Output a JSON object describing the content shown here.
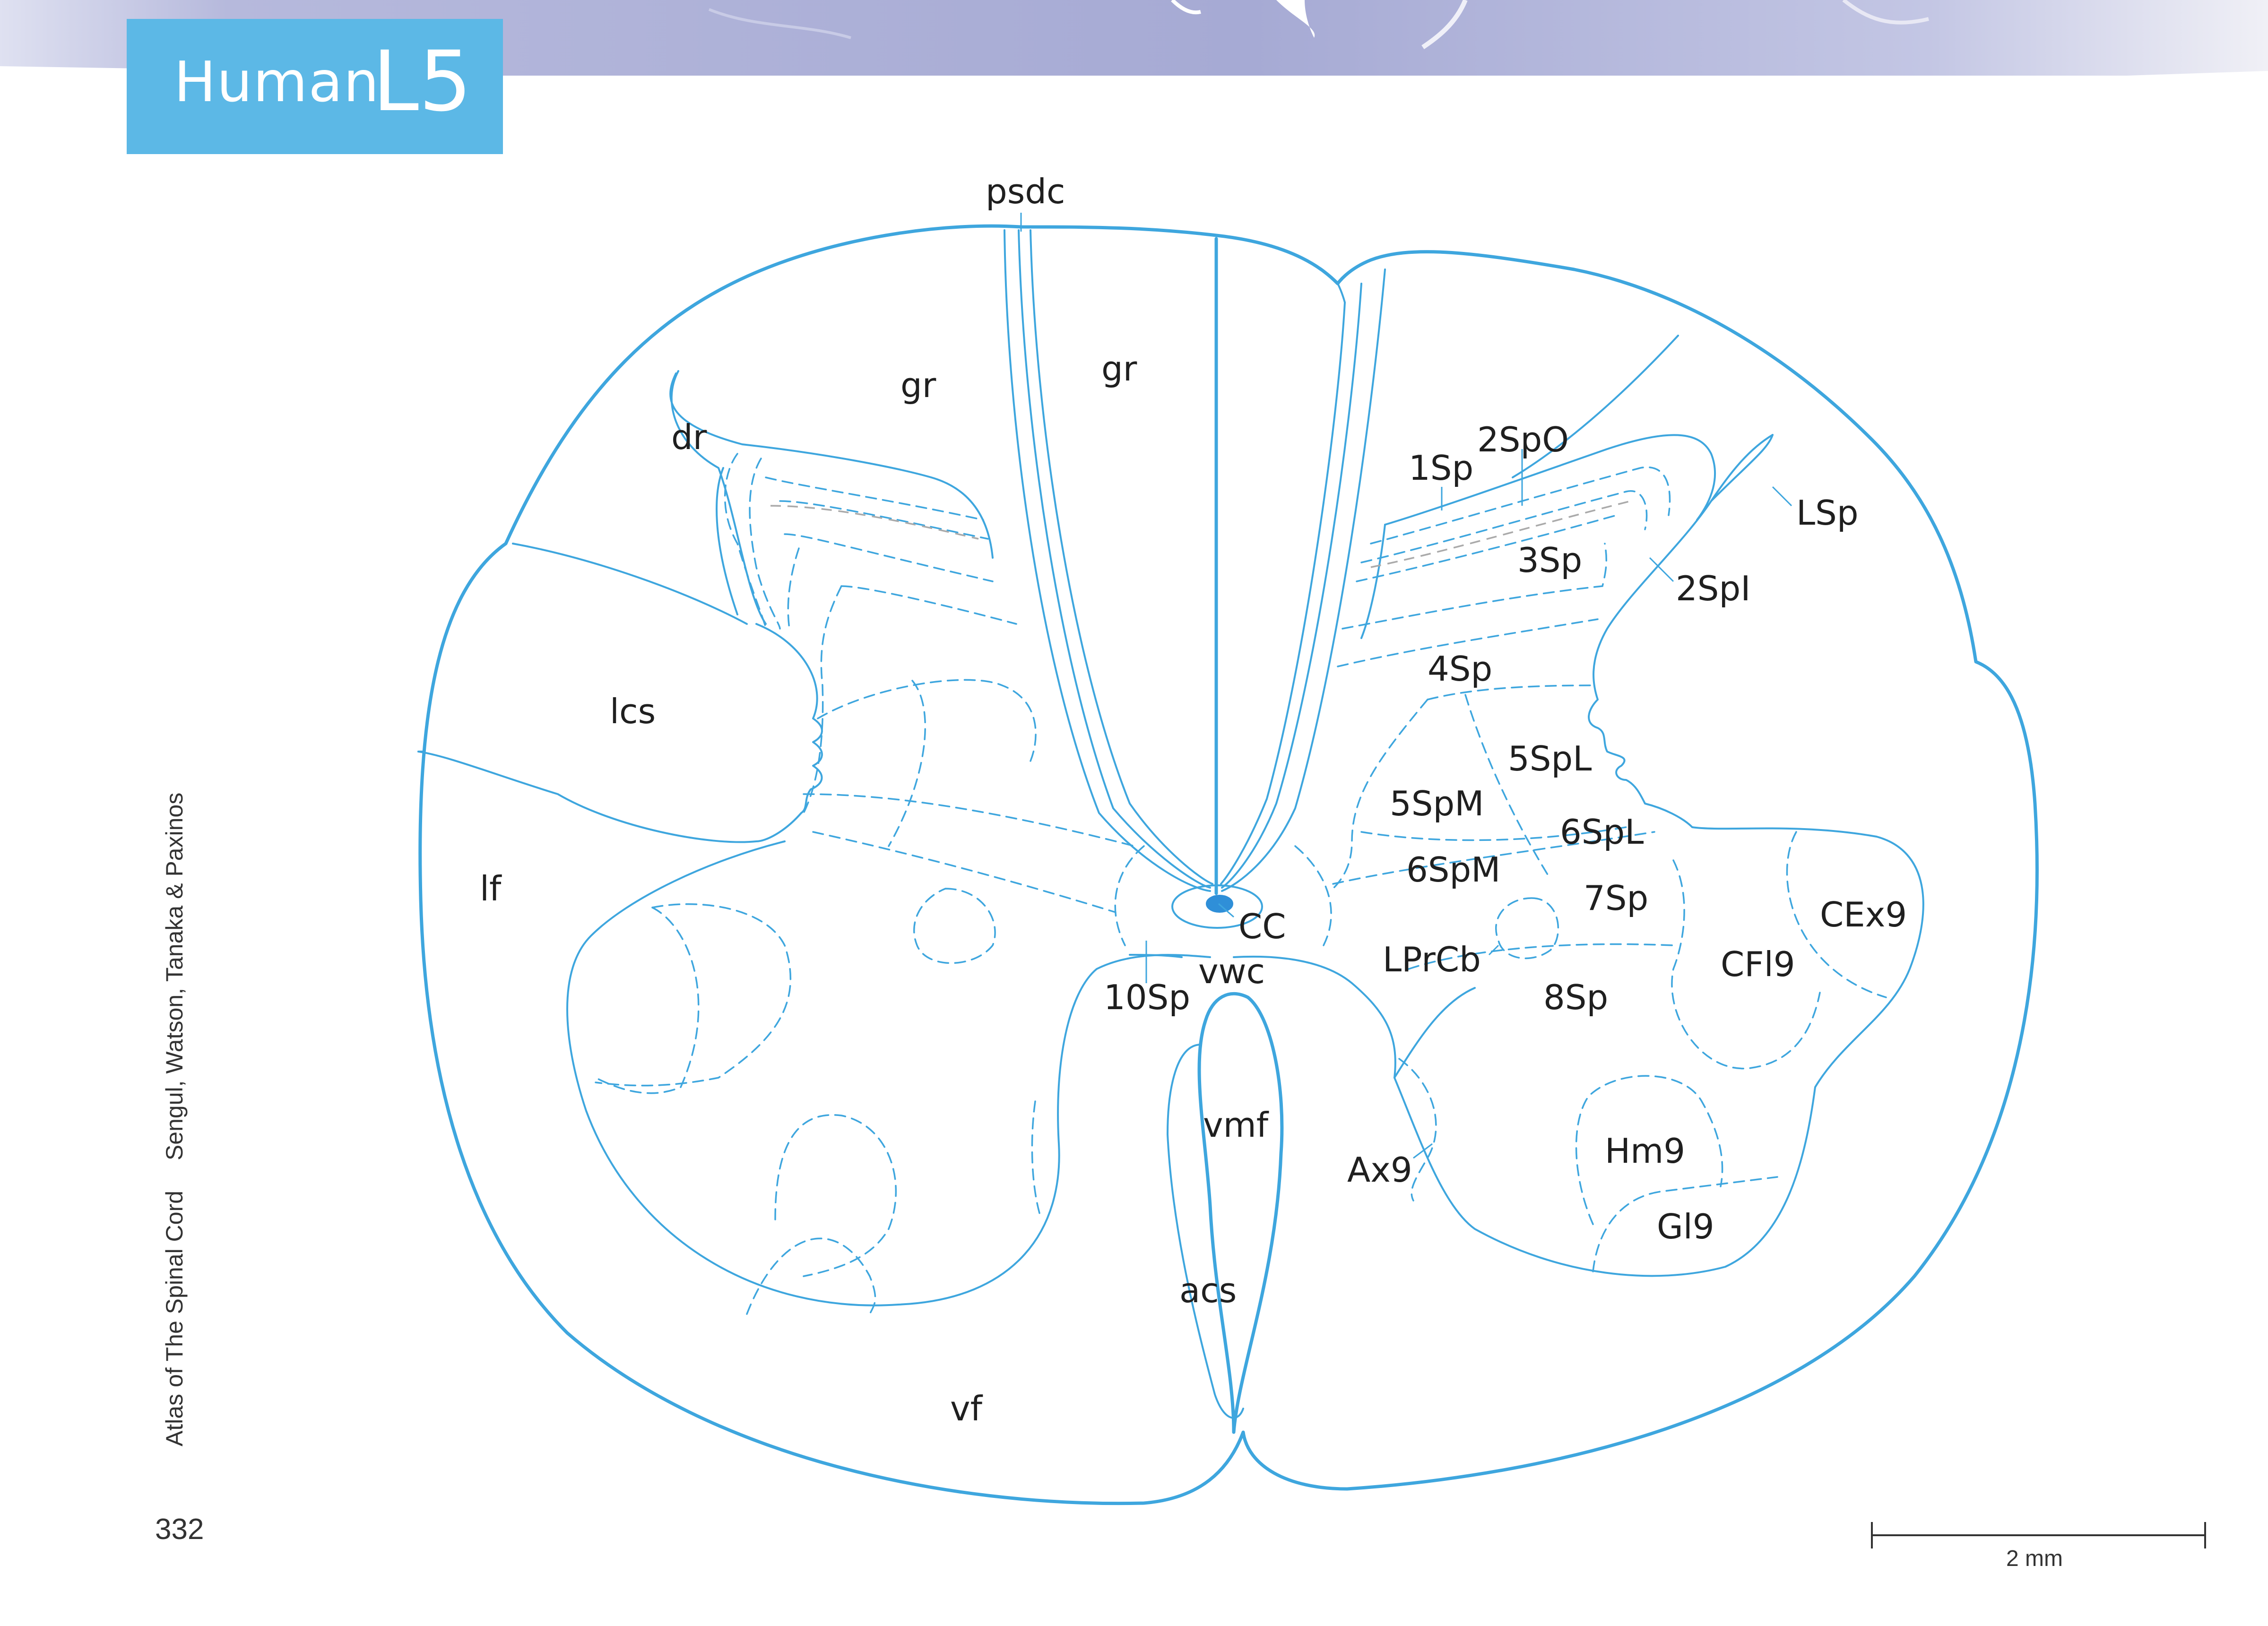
{
  "title": {
    "species": "Human",
    "level": "L5"
  },
  "running_head": {
    "book": "Atlas of The Spinal Cord",
    "authors": "Sengul, Watson, Tanaka & Paxinos"
  },
  "page_number": "332",
  "scale_bar": {
    "label": "2 mm"
  },
  "labels": {
    "psdc": "psdc",
    "gr_left": "gr",
    "gr_right": "gr",
    "dr": "dr",
    "lcs": "lcs",
    "lf": "lf",
    "sp1": "1Sp",
    "sp2o": "2SpO",
    "sp3": "3Sp",
    "sp2i": "2SpI",
    "lsp": "LSp",
    "sp4": "4Sp",
    "sp5l": "5SpL",
    "sp5m": "5SpM",
    "sp6l": "6SpL",
    "sp6m": "6SpM",
    "sp7": "7Sp",
    "cex9": "CEx9",
    "cfl9": "CFl9",
    "cc": "CC",
    "lprcb": "LPrCb",
    "vwc": "vwc",
    "sp10": "10Sp",
    "sp8": "8Sp",
    "vmf": "vmf",
    "ax9": "Ax9",
    "hm9": "Hm9",
    "gl9": "Gl9",
    "acs": "acs",
    "vf": "vf"
  },
  "colors": {
    "outline": "#3ea6de",
    "title_bg": "#5cb8e6",
    "cc_fill": "#2f8fd8",
    "label": "#1f1f1f",
    "tissue": "#8a8fc4"
  }
}
